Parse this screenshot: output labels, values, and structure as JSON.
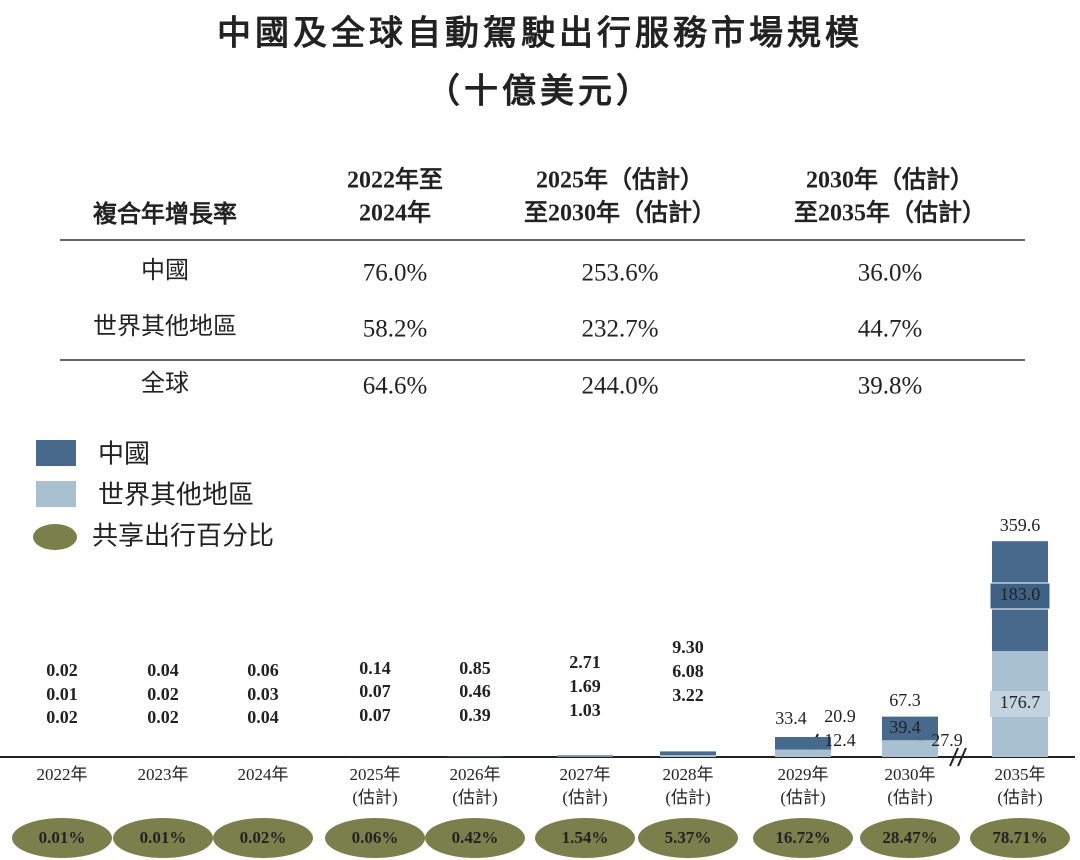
{
  "title": [
    "中國及全球自動駕駛出行服務市場規模",
    "（十億美元）"
  ],
  "table": {
    "header": [
      [
        "複合年增長率"
      ],
      [
        "2022年至",
        "2024年"
      ],
      [
        "2025年（估計）",
        "至2030年（估計）"
      ],
      [
        "2030年（估計）",
        "至2035年（估計）"
      ]
    ],
    "rows": [
      [
        "中國",
        "76.0%",
        "253.6%",
        "36.0%"
      ],
      [
        "世界其他地區",
        "58.2%",
        "232.7%",
        "44.7%"
      ],
      [
        "全球",
        "64.6%",
        "244.0%",
        "39.8%"
      ]
    ]
  },
  "chart_data": {
    "type": "bar",
    "stacked": true,
    "categories": [
      [
        "2022年"
      ],
      [
        "2023年"
      ],
      [
        "2024年"
      ],
      [
        "2025年",
        "(估計)"
      ],
      [
        "2026年",
        "(估計)"
      ],
      [
        "2027年",
        "(估計)"
      ],
      [
        "2028年",
        "(估計)"
      ],
      [
        "2029年",
        "(估計)"
      ],
      [
        "2030年",
        "(估計)"
      ],
      [
        "2035年",
        "(估計)"
      ]
    ],
    "series": [
      {
        "name": "中國",
        "color": "#46698c",
        "values": [
          0.01,
          0.02,
          0.03,
          0.07,
          0.46,
          1.69,
          6.08,
          20.9,
          39.4,
          183.0
        ],
        "value_labels": [
          "0.01",
          "0.02",
          "0.03",
          "0.07",
          "0.46",
          "1.69",
          "6.08",
          "20.9",
          "39.4",
          "183.0"
        ]
      },
      {
        "name": "世界其他地區",
        "color": "#a9c0d1",
        "values": [
          0.02,
          0.02,
          0.04,
          0.07,
          0.39,
          1.03,
          3.22,
          12.4,
          27.9,
          176.7
        ],
        "value_labels": [
          "0.02",
          "0.02",
          "0.04",
          "0.07",
          "0.39",
          "1.03",
          "3.22",
          "12.4",
          "27.9",
          "176.7"
        ]
      }
    ],
    "totals": {
      "values": [
        0.02,
        0.04,
        0.06,
        0.14,
        0.85,
        2.71,
        9.3,
        33.4,
        67.3,
        359.6
      ],
      "value_labels": [
        "0.02",
        "0.04",
        "0.06",
        "0.14",
        "0.85",
        "2.71",
        "9.30",
        "33.4",
        "67.3",
        "359.6"
      ]
    },
    "shared_mobility": {
      "name": "共享出行百分比",
      "color": "#7b7f4c",
      "values": [
        0.01,
        0.01,
        0.02,
        0.06,
        0.42,
        1.54,
        5.37,
        16.72,
        28.47,
        78.71
      ],
      "value_labels": [
        "0.01%",
        "0.01%",
        "0.02%",
        "0.06%",
        "0.42%",
        "1.54%",
        "5.37%",
        "16.72%",
        "28.47%",
        "78.71%"
      ]
    },
    "ylim": [
      0,
      360
    ]
  }
}
